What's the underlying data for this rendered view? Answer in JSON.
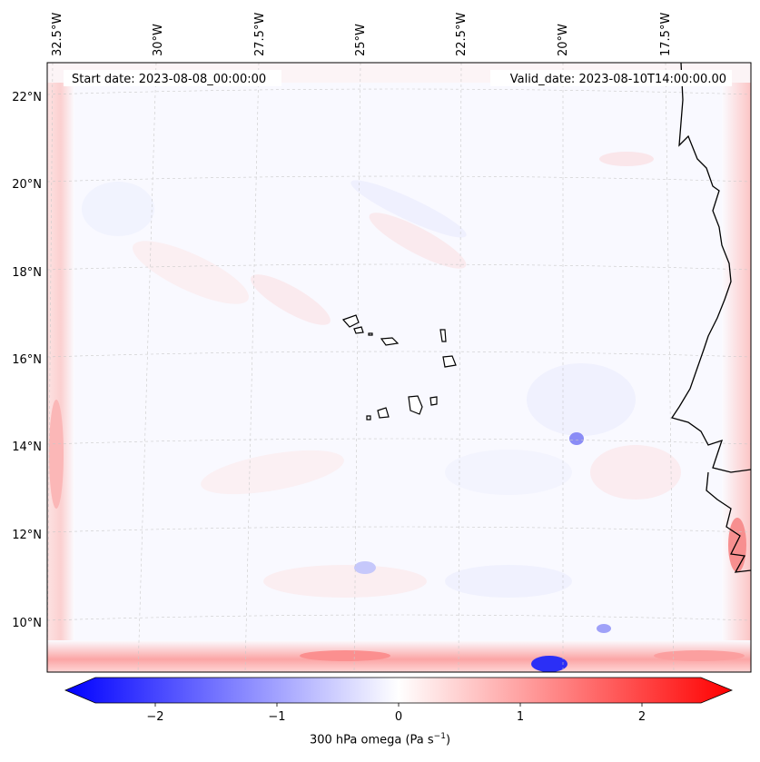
{
  "header": {
    "start_date": "Start date: 2023-08-08_00:00:00",
    "valid_date": "Valid_date: 2023-08-10T14:00:00.00"
  },
  "map": {
    "lon_labels": [
      "32.5°W",
      "30°W",
      "27.5°W",
      "25°W",
      "22.5°W",
      "20°W",
      "17.5°W"
    ],
    "lat_labels": [
      "22°N",
      "20°N",
      "18°N",
      "16°N",
      "14°N",
      "12°N",
      "10°N"
    ]
  },
  "colorbar": {
    "ticks": [
      "−2",
      "−1",
      "0",
      "1",
      "2"
    ],
    "label_prefix": "300 hPa omega (Pa s",
    "label_exp": "−1",
    "label_suffix": ")",
    "colors": {
      "low": "#0000ff",
      "mid": "#ffffff",
      "high": "#ff0000"
    }
  }
}
